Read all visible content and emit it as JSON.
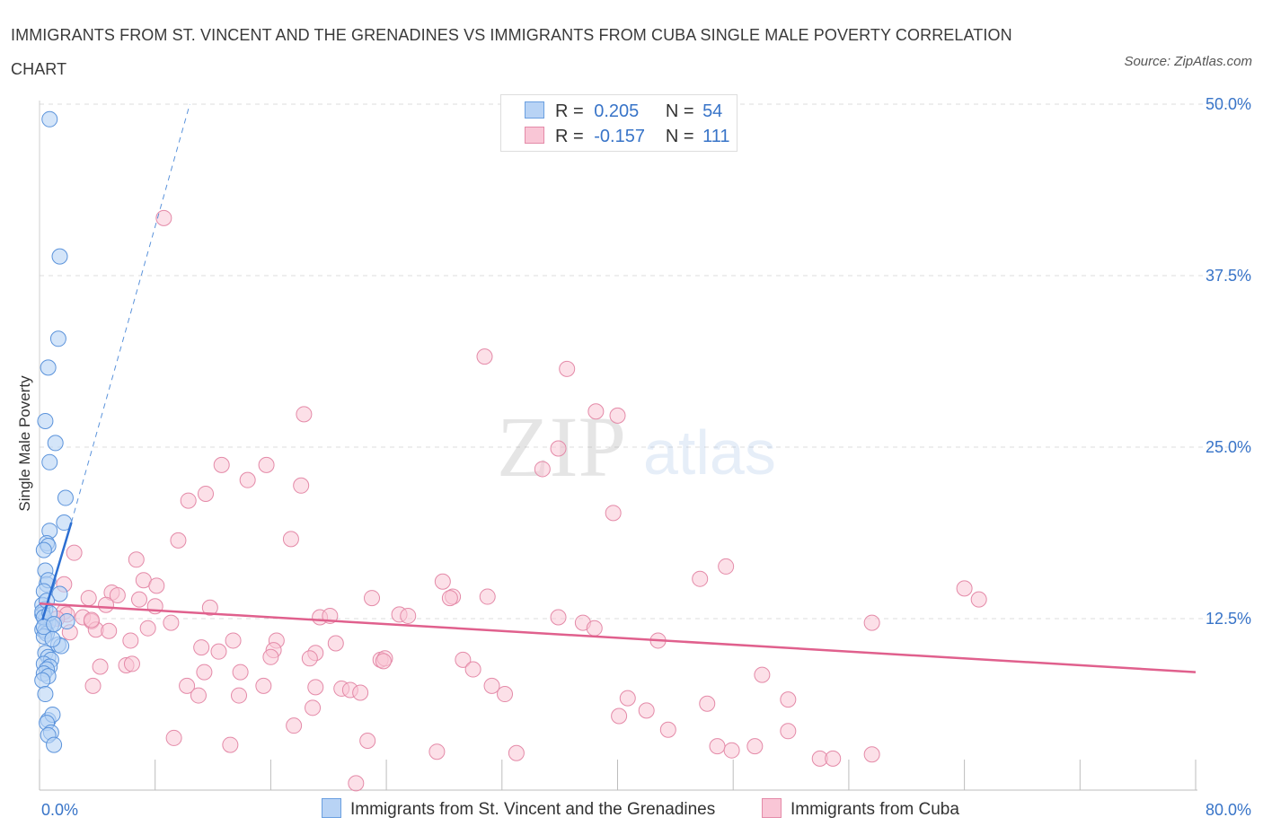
{
  "title": "IMMIGRANTS FROM ST. VINCENT AND THE GRENADINES VS IMMIGRANTS FROM CUBA SINGLE MALE POVERTY CORRELATION CHART",
  "source": "Source: ZipAtlas.com",
  "watermark": {
    "zip": "ZIP",
    "atlas": "atlas"
  },
  "legend": {
    "rows": [
      {
        "r_label": "R =",
        "r_value": "0.205",
        "n_label": "N =",
        "n_value": "54",
        "color": "#b8d3f5",
        "edge": "#6a9fe0"
      },
      {
        "r_label": "R =",
        "r_value": "-0.157",
        "n_label": "N =",
        "n_value": "111",
        "color": "#f9c6d6",
        "edge": "#e48aa8"
      }
    ]
  },
  "chart_data": {
    "type": "scatter",
    "ylabel": "Single Male Poverty",
    "xlim": [
      0,
      80
    ],
    "ylim": [
      0,
      50
    ],
    "x_tick_labels": [
      "0.0%",
      "80.0%"
    ],
    "y_ticks": [
      12.5,
      25.0,
      37.5,
      50.0
    ],
    "y_tick_labels": [
      "12.5%",
      "25.0%",
      "37.5%",
      "50.0%"
    ],
    "grid": true,
    "colors": {
      "blue_fill": "#b8d3f5",
      "blue_edge": "#5b93db",
      "blue_line": "#2d6fd2",
      "pink_fill": "#f9c6d6",
      "pink_edge": "#e48aa8",
      "pink_line": "#e0608d",
      "tick_label": "#3874c8"
    },
    "series": [
      {
        "name": "Immigrants from St. Vincent and the Grenadines",
        "points": [
          [
            0.7,
            48.9
          ],
          [
            1.4,
            38.9
          ],
          [
            1.3,
            32.9
          ],
          [
            0.6,
            30.8
          ],
          [
            0.4,
            26.9
          ],
          [
            1.1,
            25.3
          ],
          [
            0.7,
            23.9
          ],
          [
            1.8,
            21.3
          ],
          [
            1.7,
            19.5
          ],
          [
            0.7,
            18.9
          ],
          [
            0.5,
            18.0
          ],
          [
            0.6,
            17.8
          ],
          [
            0.3,
            17.5
          ],
          [
            0.4,
            16.0
          ],
          [
            0.5,
            15.0
          ],
          [
            0.6,
            15.3
          ],
          [
            0.3,
            14.5
          ],
          [
            1.4,
            14.3
          ],
          [
            0.2,
            13.5
          ],
          [
            0.4,
            13.2
          ],
          [
            0.2,
            12.8
          ],
          [
            0.4,
            12.4
          ],
          [
            0.6,
            12.2
          ],
          [
            1.9,
            12.3
          ],
          [
            0.8,
            12.0
          ],
          [
            0.2,
            11.7
          ],
          [
            0.4,
            11.6
          ],
          [
            0.5,
            11.4
          ],
          [
            0.3,
            11.2
          ],
          [
            1.3,
            10.6
          ],
          [
            1.5,
            10.5
          ],
          [
            0.4,
            10.0
          ],
          [
            0.6,
            9.7
          ],
          [
            0.8,
            9.5
          ],
          [
            0.3,
            9.2
          ],
          [
            0.7,
            9.0
          ],
          [
            0.5,
            8.8
          ],
          [
            0.3,
            8.5
          ],
          [
            0.6,
            8.3
          ],
          [
            0.2,
            8.0
          ],
          [
            0.4,
            7.0
          ],
          [
            0.6,
            5.1
          ],
          [
            0.9,
            5.5
          ],
          [
            0.5,
            4.9
          ],
          [
            0.8,
            4.2
          ],
          [
            0.6,
            4.0
          ],
          [
            1.0,
            3.3
          ],
          [
            0.2,
            13.0
          ],
          [
            0.3,
            12.6
          ],
          [
            0.5,
            13.8
          ],
          [
            0.7,
            12.9
          ],
          [
            0.3,
            11.9
          ],
          [
            1.0,
            12.1
          ],
          [
            0.9,
            11.0
          ]
        ]
      },
      {
        "name": "Immigrants from Cuba",
        "points": [
          [
            8.6,
            41.7
          ],
          [
            30.8,
            31.6
          ],
          [
            36.5,
            30.7
          ],
          [
            18.3,
            27.4
          ],
          [
            38.5,
            27.6
          ],
          [
            40.0,
            27.3
          ],
          [
            35.9,
            24.9
          ],
          [
            12.6,
            23.7
          ],
          [
            15.7,
            23.7
          ],
          [
            34.8,
            23.4
          ],
          [
            14.4,
            22.6
          ],
          [
            18.1,
            22.2
          ],
          [
            11.5,
            21.6
          ],
          [
            10.3,
            21.1
          ],
          [
            39.7,
            20.2
          ],
          [
            9.6,
            18.2
          ],
          [
            17.4,
            18.3
          ],
          [
            2.4,
            17.3
          ],
          [
            6.7,
            16.8
          ],
          [
            47.5,
            16.3
          ],
          [
            45.7,
            15.4
          ],
          [
            7.2,
            15.3
          ],
          [
            27.9,
            15.2
          ],
          [
            8.1,
            14.9
          ],
          [
            1.7,
            15.0
          ],
          [
            5.0,
            14.4
          ],
          [
            5.4,
            14.2
          ],
          [
            3.4,
            14.0
          ],
          [
            23.0,
            14.0
          ],
          [
            28.6,
            14.1
          ],
          [
            31.0,
            14.1
          ],
          [
            28.4,
            14.0
          ],
          [
            64.0,
            14.7
          ],
          [
            65.0,
            13.9
          ],
          [
            6.9,
            13.9
          ],
          [
            4.6,
            13.5
          ],
          [
            8.0,
            13.4
          ],
          [
            11.8,
            13.3
          ],
          [
            1.7,
            13.0
          ],
          [
            1.9,
            12.8
          ],
          [
            1.2,
            12.5
          ],
          [
            3.0,
            12.6
          ],
          [
            3.6,
            12.3
          ],
          [
            24.9,
            12.8
          ],
          [
            25.5,
            12.7
          ],
          [
            19.4,
            12.6
          ],
          [
            20.1,
            12.7
          ],
          [
            35.9,
            12.6
          ],
          [
            37.6,
            12.2
          ],
          [
            38.4,
            11.8
          ],
          [
            9.1,
            12.2
          ],
          [
            7.5,
            11.8
          ],
          [
            3.9,
            11.7
          ],
          [
            4.8,
            11.6
          ],
          [
            2.1,
            11.5
          ],
          [
            6.3,
            10.9
          ],
          [
            13.4,
            10.9
          ],
          [
            16.4,
            10.9
          ],
          [
            20.5,
            10.7
          ],
          [
            11.2,
            10.4
          ],
          [
            12.4,
            10.1
          ],
          [
            16.2,
            10.2
          ],
          [
            19.1,
            10.0
          ],
          [
            57.6,
            12.2
          ],
          [
            42.8,
            10.9
          ],
          [
            18.7,
            9.6
          ],
          [
            16.0,
            9.7
          ],
          [
            23.6,
            9.5
          ],
          [
            23.9,
            9.6
          ],
          [
            23.8,
            9.4
          ],
          [
            4.2,
            9.0
          ],
          [
            6.0,
            9.1
          ],
          [
            6.4,
            9.2
          ],
          [
            29.3,
            9.5
          ],
          [
            11.4,
            8.6
          ],
          [
            13.9,
            8.6
          ],
          [
            30.0,
            8.8
          ],
          [
            50.0,
            8.4
          ],
          [
            3.7,
            7.6
          ],
          [
            10.2,
            7.6
          ],
          [
            15.5,
            7.6
          ],
          [
            19.1,
            7.5
          ],
          [
            20.9,
            7.4
          ],
          [
            21.5,
            7.3
          ],
          [
            31.3,
            7.6
          ],
          [
            32.2,
            7.0
          ],
          [
            11.0,
            6.9
          ],
          [
            13.8,
            6.9
          ],
          [
            22.2,
            7.1
          ],
          [
            40.7,
            6.7
          ],
          [
            42.0,
            5.8
          ],
          [
            51.8,
            6.6
          ],
          [
            46.2,
            6.3
          ],
          [
            18.9,
            6.0
          ],
          [
            17.6,
            4.7
          ],
          [
            40.1,
            5.4
          ],
          [
            43.5,
            4.4
          ],
          [
            51.8,
            4.3
          ],
          [
            9.3,
            3.8
          ],
          [
            13.2,
            3.3
          ],
          [
            22.7,
            3.6
          ],
          [
            46.9,
            3.2
          ],
          [
            49.5,
            3.2
          ],
          [
            27.5,
            2.8
          ],
          [
            33.0,
            2.7
          ],
          [
            47.9,
            2.9
          ],
          [
            54.0,
            2.3
          ],
          [
            54.9,
            2.3
          ],
          [
            57.6,
            2.6
          ],
          [
            21.9,
            0.5
          ],
          [
            3.6,
            12.4
          ]
        ]
      }
    ],
    "trendlines": [
      {
        "series": "Immigrants from St. Vincent and the Grenadines",
        "solid": [
          [
            0.2,
            12.4
          ],
          [
            2.2,
            19.5
          ]
        ],
        "dashed": [
          [
            2.2,
            19.5
          ],
          [
            10.4,
            50.0
          ]
        ]
      },
      {
        "series": "Immigrants from Cuba",
        "solid": [
          [
            0.0,
            13.6
          ],
          [
            80.0,
            8.6
          ]
        ]
      }
    ]
  }
}
